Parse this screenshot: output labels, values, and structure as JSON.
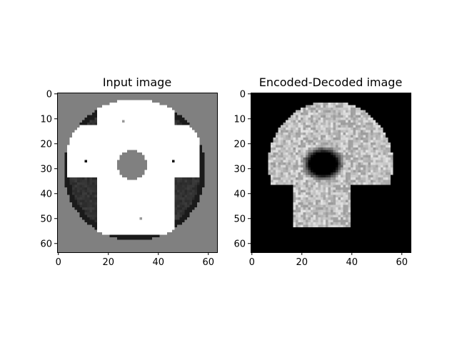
{
  "chart_data": [
    {
      "type": "heatmap",
      "title": "Input image",
      "xlabel": "",
      "ylabel": "",
      "xlim": [
        0,
        64
      ],
      "ylim": [
        64,
        0
      ],
      "x_ticks": [
        0,
        20,
        40,
        60
      ],
      "y_ticks": [
        0,
        10,
        20,
        30,
        40,
        50,
        60
      ],
      "colormap": "gray",
      "grid": false,
      "content": {
        "background_value": 0.5,
        "disc": {
          "center": [
            30.5,
            30.5
          ],
          "radius": 28.5,
          "rim_value": 0.1,
          "quadrant_value": 0.2
        },
        "cross": {
          "vertical_arm": {
            "x": [
              15.5,
              46.5
            ],
            "y": [
              2.5,
              56.5
            ]
          },
          "horizontal_arm": {
            "x": [
              3.5,
              56.5
            ],
            "y": [
              12.5,
              33.5
            ]
          },
          "value": 1.0
        },
        "hole": {
          "center": [
            29.5,
            28.5
          ],
          "radius": 6,
          "value": 0.5
        },
        "dots": [
          {
            "x": 11,
            "y": 27,
            "value": 0.05
          },
          {
            "x": 46,
            "y": 27,
            "value": 0.05
          },
          {
            "x": 26,
            "y": 11,
            "value": 0.6
          },
          {
            "x": 33,
            "y": 50,
            "value": 0.6
          }
        ]
      }
    },
    {
      "type": "heatmap",
      "title": "Encoded-Decoded image",
      "xlabel": "",
      "ylabel": "",
      "xlim": [
        0,
        64
      ],
      "ylim": [
        64,
        0
      ],
      "x_ticks": [
        0,
        20,
        40,
        60
      ],
      "y_ticks": [
        0,
        10,
        20,
        30,
        40,
        50,
        60
      ],
      "colormap": "gray",
      "grid": false,
      "content": {
        "background_value": 0.0,
        "blob_top": {
          "center": [
            31.5,
            28
          ],
          "radius": 25,
          "y_range": [
            3,
            36
          ]
        },
        "blob_stem": {
          "x": [
            16.5,
            39.5
          ],
          "y": [
            28,
            53.5
          ]
        },
        "blob_value": 0.75,
        "hole": {
          "center": [
            28.5,
            28
          ],
          "radius_x": 5.5,
          "radius_y": 4.5,
          "value": 0.0
        }
      }
    }
  ]
}
